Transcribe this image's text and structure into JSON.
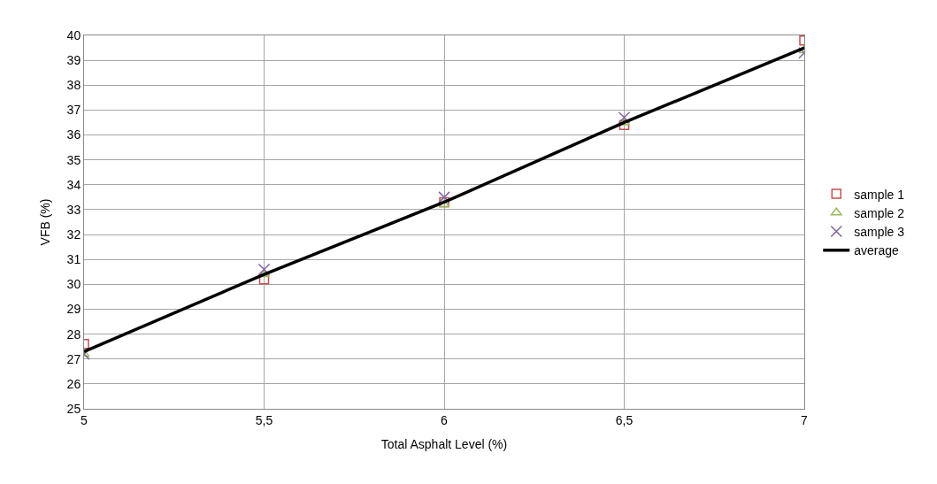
{
  "chart_data": {
    "type": "scatter",
    "xlabel": "Total Asphalt Level (%)",
    "ylabel": "VFB (%)",
    "x": [
      5,
      5.5,
      6,
      6.5,
      7
    ],
    "series": [
      {
        "name": "sample 1",
        "color": "#c0504d",
        "marker": "square",
        "values": [
          27.6,
          30.2,
          33.3,
          36.4,
          39.8
        ]
      },
      {
        "name": "sample 2",
        "color": "#9bbb59",
        "marker": "triangle",
        "values": [
          27.2,
          30.4,
          33.2,
          36.5,
          39.4
        ]
      },
      {
        "name": "sample 3",
        "color": "#8064a2",
        "marker": "cross",
        "values": [
          27.2,
          30.6,
          33.5,
          36.7,
          39.3
        ]
      },
      {
        "name": "average",
        "color": "#000000",
        "type": "line",
        "marker": "none",
        "line_style": "solid",
        "values": [
          27.3,
          30.4,
          33.3,
          36.5,
          39.5
        ]
      }
    ],
    "xlim": [
      5,
      7
    ],
    "xticks": [
      5,
      {
        "value": 5.5,
        "label": "5,5"
      },
      6,
      {
        "value": 6.5,
        "label": "6,5"
      },
      7
    ],
    "ylim": [
      25,
      40
    ],
    "yticks": [
      25,
      26,
      27,
      28,
      29,
      30,
      31,
      32,
      33,
      34,
      35,
      36,
      37,
      38,
      39,
      40
    ],
    "grid": true,
    "legend": "right"
  }
}
